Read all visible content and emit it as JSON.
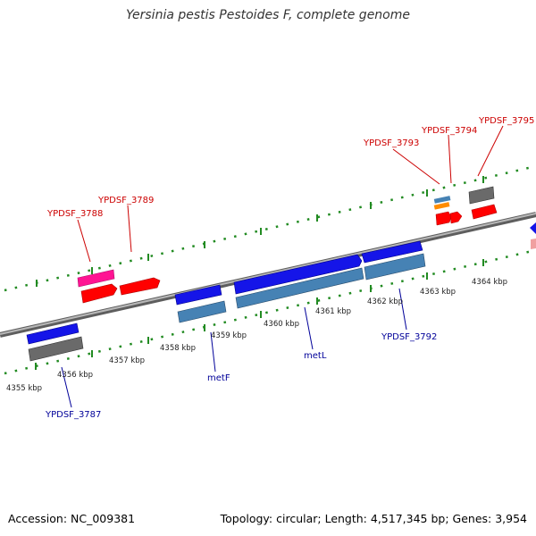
{
  "title": "Yersinia pestis Pestoides F, complete genome",
  "footer": {
    "accession": "Accession: NC_009381",
    "topology": "Topology: circular; Length: 4,517,345 bp; Genes: 3,954"
  },
  "colors": {
    "forward_label": "#cc0000",
    "reverse_label": "#000099",
    "blue_gene": "#0000e0",
    "steelblue_gene": "#4682b4",
    "red_gene": "#ff0000",
    "pink_gene": "#ff1493",
    "gray_gene": "#666666",
    "orange_gene": "#ff8c00",
    "tick_green": "#228b22"
  },
  "kbp_labels": [
    "4355 kbp",
    "4356 kbp",
    "4357 kbp",
    "4358 kbp",
    "4359 kbp",
    "4360 kbp",
    "4361 kbp",
    "4362 kbp",
    "4363 kbp",
    "4364 kbp"
  ],
  "gene_labels": {
    "YPDSF_3788": "YPDSF_3788",
    "YPDSF_3789": "YPDSF_3789",
    "YPDSF_3793": "YPDSF_3793",
    "YPDSF_3794": "YPDSF_3794",
    "YPDSF_3795": "YPDSF_3795",
    "YPDSF_3787": "YPDSF_3787",
    "metF": "metF",
    "metL": "metL",
    "YPDSF_3792": "YPDSF_3792"
  }
}
